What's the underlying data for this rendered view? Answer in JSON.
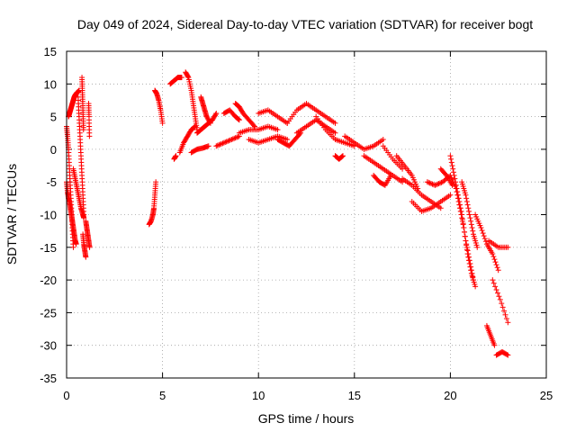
{
  "chart_data": {
    "type": "scatter",
    "title": "Day 049 of 2024, Sidereal Day-to-day VTEC variation (SDTVAR) for receiver bogt",
    "xlabel": "GPS time / hours",
    "ylabel": "SDTVAR / TECUs",
    "xlim": [
      0,
      25
    ],
    "ylim": [
      -35,
      15
    ],
    "xticks": [
      0,
      5,
      10,
      15,
      20,
      25
    ],
    "yticks": [
      -35,
      -30,
      -25,
      -20,
      -15,
      -10,
      -5,
      0,
      5,
      10,
      15
    ],
    "grid": true,
    "marker": "+",
    "color": "#ff0000",
    "segments": [
      {
        "name": "arc-01",
        "x": [
          0.0,
          0.05,
          0.1,
          0.15,
          0.2,
          0.25,
          0.3,
          0.35
        ],
        "y": [
          3.5,
          2.0,
          0.0,
          -3.0,
          -6.0,
          -9.0,
          -12.0,
          -15.0
        ]
      },
      {
        "name": "arc-02",
        "x": [
          0.0,
          0.05,
          0.1,
          0.15,
          0.2,
          0.25,
          0.3,
          0.35,
          0.4,
          0.45,
          0.5
        ],
        "y": [
          -5.0,
          -6.5,
          -7.5,
          -8.0,
          -9.0,
          -10.0,
          -11.0,
          -12.0,
          -13.0,
          -14.0,
          -14.5
        ]
      },
      {
        "name": "arc-03",
        "x": [
          0.1,
          0.15,
          0.2,
          0.25,
          0.3,
          0.35,
          0.4,
          0.45,
          0.5,
          0.55,
          0.6,
          0.65
        ],
        "y": [
          5.0,
          5.5,
          6.0,
          6.5,
          7.0,
          7.5,
          8.0,
          8.3,
          8.5,
          8.7,
          8.8,
          9.0
        ]
      },
      {
        "name": "arc-04",
        "x": [
          0.35,
          0.45,
          0.55,
          0.65,
          0.75,
          0.85,
          0.9
        ],
        "y": [
          -3.0,
          -4.5,
          -6.0,
          -7.5,
          -9.0,
          -10.0,
          -10.5
        ]
      },
      {
        "name": "arc-05",
        "x": [
          0.6,
          0.65,
          0.7,
          0.75,
          0.8,
          0.85,
          0.9
        ],
        "y": [
          8.0,
          5.0,
          2.0,
          -1.0,
          -4.0,
          -7.0,
          -10.0
        ]
      },
      {
        "name": "arc-06",
        "x": [
          0.8,
          0.82,
          0.84,
          0.86,
          0.88
        ],
        "y": [
          11.0,
          9.0,
          7.0,
          5.0,
          3.0
        ]
      },
      {
        "name": "arc-07",
        "x": [
          0.85,
          0.9,
          0.95,
          1.0
        ],
        "y": [
          -13.0,
          -14.5,
          -15.5,
          -16.5
        ]
      },
      {
        "name": "arc-08",
        "x": [
          1.0,
          1.05,
          1.1,
          1.15,
          1.2
        ],
        "y": [
          -11.0,
          -12.0,
          -13.0,
          -14.0,
          -15.0
        ]
      },
      {
        "name": "arc-09",
        "x": [
          1.15,
          1.17,
          1.19
        ],
        "y": [
          7.0,
          5.0,
          2.0
        ]
      },
      {
        "name": "arc-10",
        "x": [
          4.3,
          4.4,
          4.5,
          4.55,
          4.6,
          4.65
        ],
        "y": [
          -11.5,
          -11.0,
          -10.0,
          -9.0,
          -7.0,
          -5.0
        ]
      },
      {
        "name": "arc-11",
        "x": [
          4.6,
          4.7,
          4.8,
          4.9,
          5.0
        ],
        "y": [
          9.0,
          8.5,
          7.5,
          6.0,
          4.0
        ]
      },
      {
        "name": "arc-12",
        "x": [
          5.4,
          5.6,
          5.8,
          6.0
        ],
        "y": [
          10.0,
          10.5,
          11.0,
          11.0
        ]
      },
      {
        "name": "arc-13",
        "x": [
          5.6,
          5.7
        ],
        "y": [
          -1.5,
          -1.0
        ]
      },
      {
        "name": "arc-14",
        "x": [
          5.9,
          6.1,
          6.3,
          6.5,
          6.7
        ],
        "y": [
          -0.5,
          1.0,
          2.0,
          3.0,
          3.5
        ]
      },
      {
        "name": "arc-15",
        "x": [
          6.2,
          6.35,
          6.5,
          6.6,
          6.7,
          6.8
        ],
        "y": [
          11.8,
          11.0,
          9.0,
          7.0,
          5.0,
          3.0
        ]
      },
      {
        "name": "arc-16",
        "x": [
          6.5,
          6.8,
          7.1,
          7.4
        ],
        "y": [
          -0.5,
          0.0,
          0.2,
          0.5
        ]
      },
      {
        "name": "arc-17",
        "x": [
          6.8,
          7.0,
          7.2,
          7.4,
          7.6,
          7.8
        ],
        "y": [
          2.5,
          3.0,
          3.5,
          4.0,
          4.5,
          5.5
        ]
      },
      {
        "name": "arc-18",
        "x": [
          7.0,
          7.1,
          7.2,
          7.3,
          7.5
        ],
        "y": [
          8.0,
          7.0,
          6.0,
          5.0,
          4.0
        ]
      },
      {
        "name": "arc-19",
        "x": [
          7.8,
          8.2,
          8.6,
          9.0
        ],
        "y": [
          0.5,
          1.0,
          1.5,
          2.0
        ]
      },
      {
        "name": "arc-20",
        "x": [
          8.2,
          8.5,
          8.8,
          9.0
        ],
        "y": [
          5.5,
          6.0,
          5.0,
          4.5
        ]
      },
      {
        "name": "arc-21",
        "x": [
          8.8,
          9.0,
          9.2,
          9.5,
          9.8
        ],
        "y": [
          7.0,
          6.5,
          5.5,
          4.5,
          3.5
        ]
      },
      {
        "name": "arc-22",
        "x": [
          9.0,
          9.5,
          10.0,
          10.5,
          11.0
        ],
        "y": [
          2.5,
          3.0,
          3.0,
          3.5,
          3.0
        ]
      },
      {
        "name": "arc-23",
        "x": [
          9.5,
          10.0,
          10.5,
          11.0,
          11.5
        ],
        "y": [
          1.5,
          1.0,
          1.5,
          2.0,
          1.5
        ]
      },
      {
        "name": "arc-24",
        "x": [
          10.0,
          10.5,
          11.0,
          11.5
        ],
        "y": [
          5.5,
          6.0,
          5.0,
          4.0
        ]
      },
      {
        "name": "arc-25",
        "x": [
          11.0,
          11.3,
          11.6,
          11.9,
          12.2
        ],
        "y": [
          1.5,
          1.0,
          0.5,
          1.5,
          2.5
        ]
      },
      {
        "name": "arc-26",
        "x": [
          11.5,
          12.0,
          12.5,
          13.0,
          13.5,
          14.0
        ],
        "y": [
          4.0,
          6.0,
          7.0,
          6.0,
          5.0,
          4.0
        ]
      },
      {
        "name": "arc-27",
        "x": [
          12.0,
          12.5,
          13.0,
          13.5,
          14.0
        ],
        "y": [
          2.5,
          3.5,
          4.5,
          3.5,
          2.5
        ]
      },
      {
        "name": "arc-28",
        "x": [
          13.0,
          13.5,
          14.0,
          14.5,
          15.0
        ],
        "y": [
          5.0,
          3.0,
          1.5,
          1.0,
          0.5
        ]
      },
      {
        "name": "arc-29",
        "x": [
          14.0,
          14.2,
          14.4
        ],
        "y": [
          -1.0,
          -1.5,
          -1.0
        ]
      },
      {
        "name": "arc-30",
        "x": [
          14.5,
          15.0,
          15.5,
          16.0,
          16.5
        ],
        "y": [
          2.0,
          1.0,
          0.0,
          0.5,
          1.5
        ]
      },
      {
        "name": "arc-31",
        "x": [
          15.5,
          16.0,
          16.5,
          17.0,
          17.5
        ],
        "y": [
          -1.0,
          -2.0,
          -3.0,
          -4.0,
          -5.0
        ]
      },
      {
        "name": "arc-32",
        "x": [
          16.0,
          16.3,
          16.6,
          16.9
        ],
        "y": [
          -4.0,
          -5.0,
          -5.5,
          -4.0
        ]
      },
      {
        "name": "arc-33",
        "x": [
          16.5,
          17.0,
          17.5
        ],
        "y": [
          0.5,
          -1.5,
          -3.0
        ]
      },
      {
        "name": "arc-34",
        "x": [
          17.2,
          17.6,
          18.0,
          18.3
        ],
        "y": [
          -1.0,
          -2.5,
          -4.0,
          -6.0
        ]
      },
      {
        "name": "arc-35",
        "x": [
          17.5,
          18.0,
          18.5,
          19.0,
          19.5
        ],
        "y": [
          -4.5,
          -5.5,
          -7.0,
          -8.0,
          -9.0
        ]
      },
      {
        "name": "arc-36",
        "x": [
          18.0,
          18.5,
          19.0,
          19.5,
          20.0
        ],
        "y": [
          -8.0,
          -9.5,
          -9.0,
          -8.0,
          -7.0
        ]
      },
      {
        "name": "arc-37",
        "x": [
          18.8,
          19.2,
          19.6,
          20.0,
          20.3
        ],
        "y": [
          -5.0,
          -5.5,
          -5.0,
          -4.0,
          -6.0
        ]
      },
      {
        "name": "arc-38",
        "x": [
          19.5,
          19.8,
          20.1
        ],
        "y": [
          -3.0,
          -4.0,
          -5.5
        ]
      },
      {
        "name": "arc-39",
        "x": [
          20.0,
          20.2,
          20.4,
          20.6,
          20.8,
          21.0,
          21.2
        ],
        "y": [
          -1.0,
          -4.0,
          -7.0,
          -10.0,
          -14.0,
          -17.0,
          -20.0
        ]
      },
      {
        "name": "arc-40",
        "x": [
          20.3,
          20.5,
          20.7,
          20.9,
          21.1,
          21.3
        ],
        "y": [
          -6.0,
          -9.0,
          -12.0,
          -16.0,
          -19.0,
          -21.0
        ]
      },
      {
        "name": "arc-41",
        "x": [
          20.6,
          20.8,
          21.0,
          21.2,
          21.4
        ],
        "y": [
          -5.0,
          -7.0,
          -10.0,
          -13.0,
          -15.0
        ]
      },
      {
        "name": "arc-42",
        "x": [
          21.3,
          21.6,
          21.9,
          22.2,
          22.5
        ],
        "y": [
          -10.0,
          -12.0,
          -14.5,
          -16.0,
          -18.5
        ]
      },
      {
        "name": "arc-43",
        "x": [
          22.0,
          22.5,
          23.0
        ],
        "y": [
          -14.0,
          -15.0,
          -15.0
        ]
      },
      {
        "name": "arc-44",
        "x": [
          22.2,
          22.6,
          23.0
        ],
        "y": [
          -20.0,
          -23.0,
          -26.5
        ]
      },
      {
        "name": "arc-45",
        "x": [
          21.9,
          22.1,
          22.3
        ],
        "y": [
          -27.0,
          -28.5,
          -30.0
        ]
      },
      {
        "name": "arc-46",
        "x": [
          22.4,
          22.7,
          23.0
        ],
        "y": [
          -31.5,
          -31.0,
          -31.5
        ]
      }
    ]
  }
}
